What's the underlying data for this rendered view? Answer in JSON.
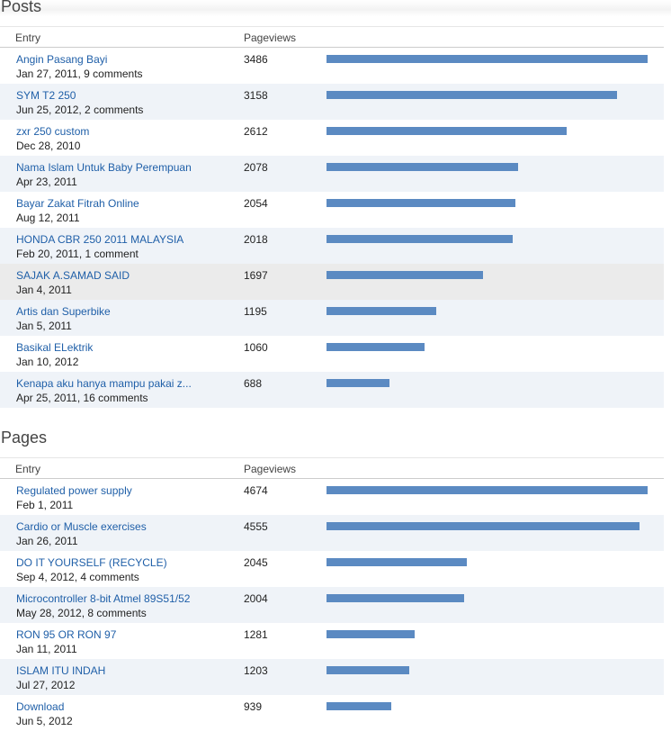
{
  "colors": {
    "link": "#1f5fa8",
    "bar": "#5b8ac2",
    "alt_row": "#eff3f8",
    "highlight_row": "#ebebeb"
  },
  "columns": {
    "entry": "Entry",
    "pageviews": "Pageviews"
  },
  "posts": {
    "title": "Posts",
    "max_views": 3486,
    "rows": [
      {
        "title": "Angin Pasang Bayi",
        "meta": "Jan 27, 2011, 9 comments",
        "views": 3486
      },
      {
        "title": "SYM T2 250",
        "meta": "Jun 25, 2012, 2 comments",
        "views": 3158
      },
      {
        "title": "zxr 250 custom",
        "meta": "Dec 28, 2010",
        "views": 2612
      },
      {
        "title": "Nama Islam Untuk Baby Perempuan",
        "meta": "Apr 23, 2011",
        "views": 2078
      },
      {
        "title": "Bayar Zakat Fitrah Online",
        "meta": "Aug 12, 2011",
        "views": 2054
      },
      {
        "title": "HONDA CBR 250 2011 MALAYSIA",
        "meta": "Feb 20, 2011, 1 comment",
        "views": 2018
      },
      {
        "title": "SAJAK A.SAMAD SAID",
        "meta": "Jan 4, 2011",
        "views": 1697
      },
      {
        "title": "Artis dan Superbike",
        "meta": "Jan 5, 2011",
        "views": 1195
      },
      {
        "title": "Basikal ELektrik",
        "meta": "Jan 10, 2012",
        "views": 1060
      },
      {
        "title": "Kenapa aku hanya mampu pakai z...",
        "meta": "Apr 25, 2011, 16 comments",
        "views": 688
      }
    ]
  },
  "pages": {
    "title": "Pages",
    "max_views": 4674,
    "rows": [
      {
        "title": "Regulated power supply",
        "meta": "Feb 1, 2011",
        "views": 4674
      },
      {
        "title": "Cardio or Muscle exercises",
        "meta": "Jan 26, 2011",
        "views": 4555
      },
      {
        "title": "DO IT YOURSELF (RECYCLE)",
        "meta": "Sep 4, 2012, 4 comments",
        "views": 2045
      },
      {
        "title": "Microcontroller 8-bit Atmel 89S51/52",
        "meta": "May 28, 2012, 8 comments",
        "views": 2004
      },
      {
        "title": "RON 95 OR RON 97",
        "meta": "Jan 11, 2011",
        "views": 1281
      },
      {
        "title": "ISLAM ITU INDAH",
        "meta": "Jul 27, 2012",
        "views": 1203
      },
      {
        "title": "Download",
        "meta": "Jun 5, 2012",
        "views": 939
      }
    ]
  }
}
